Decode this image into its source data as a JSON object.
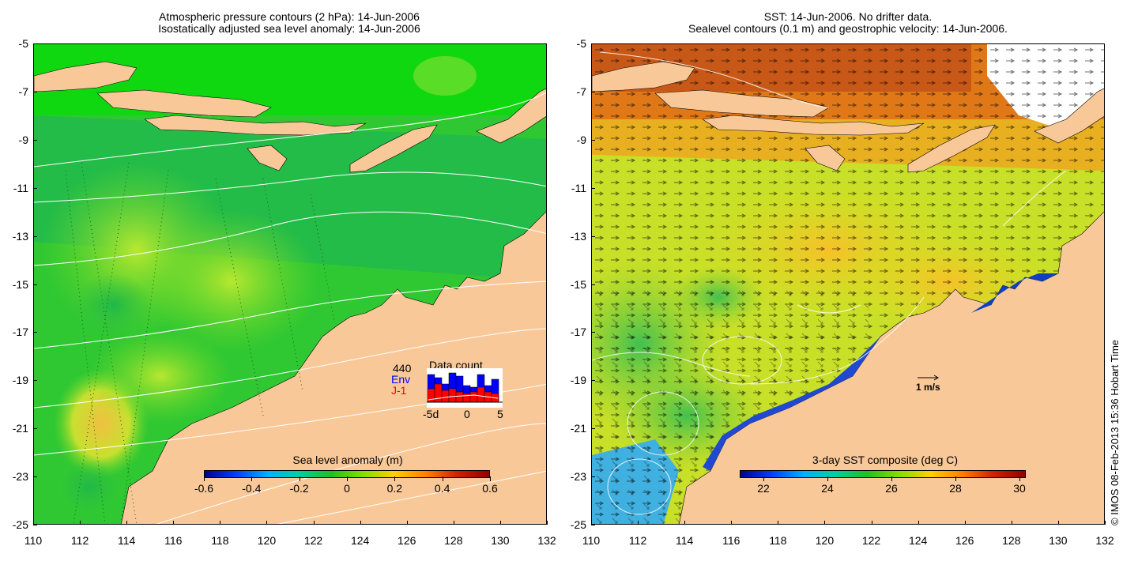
{
  "left_panel": {
    "title_line1": "Atmospheric pressure contours (2 hPa): 14-Jun-2006",
    "title_line2": "Isostatically adjusted sea level anomaly: 14-Jun-2006",
    "y_ticks": [
      "-5",
      "-7",
      "-9",
      "-11",
      "-13",
      "-15",
      "-17",
      "-19",
      "-21",
      "-23",
      "-25"
    ],
    "x_ticks": [
      "110",
      "112",
      "114",
      "116",
      "118",
      "120",
      "122",
      "124",
      "126",
      "128",
      "130",
      "132"
    ],
    "colorbar": {
      "title": "Sea level anomaly (m)",
      "labels": [
        "-0.6",
        "-0.4",
        "-0.2",
        "0",
        "0.2",
        "0.4",
        "0.6"
      ]
    },
    "data_count": {
      "title": "Data count",
      "total": "440",
      "env_label": "Env",
      "j1_label": "J-1",
      "x_labels": [
        "-5d",
        "0",
        "5"
      ],
      "env_color": "#0000ff",
      "j1_color": "#ff0000"
    }
  },
  "right_panel": {
    "title_line1": "SST: 14-Jun-2006. No drifter data.",
    "title_line2": "Sealevel contours (0.1 m) and geostrophic velocity: 14-Jun-2006.",
    "y_ticks": [
      "-5",
      "-7",
      "-9",
      "-11",
      "-13",
      "-15",
      "-17",
      "-19",
      "-21",
      "-23",
      "-25"
    ],
    "x_ticks": [
      "110",
      "112",
      "114",
      "116",
      "118",
      "120",
      "122",
      "124",
      "126",
      "128",
      "130",
      "132"
    ],
    "colorbar": {
      "title": "3-day SST composite (deg C)",
      "labels": [
        "22",
        "24",
        "26",
        "28",
        "30"
      ]
    },
    "scale_label": "1 m/s"
  },
  "credit": "© IMOS 08-Feb-2013 15:36 Hobart Time",
  "colors": {
    "land": "#f9c898",
    "sea_green": "#2fc82f",
    "sst_orange": "#f0a020"
  }
}
